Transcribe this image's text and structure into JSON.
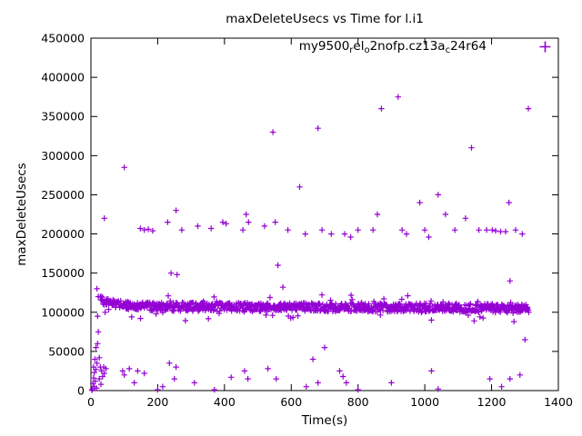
{
  "chart_data": {
    "type": "scatter",
    "title": "maxDeleteUsecs vs Time for l.i1",
    "xlabel": "Time(s)",
    "ylabel": "maxDeleteUsecs",
    "xlim": [
      0,
      1400
    ],
    "ylim": [
      0,
      450000
    ],
    "xticks": [
      0,
      200,
      400,
      600,
      800,
      1000,
      1200,
      1400
    ],
    "yticks": [
      0,
      50000,
      100000,
      150000,
      200000,
      250000,
      300000,
      350000,
      400000,
      450000
    ],
    "grid": false,
    "marker": "plus",
    "color": "#9400D3",
    "legend_position": "top-right-inside",
    "legend": {
      "plain_text": "my9500_rel_o2nofp.cz13a_c24r64",
      "segments": [
        {
          "text": "my9500",
          "sub": false
        },
        {
          "text": "r",
          "sub": true
        },
        {
          "text": "el",
          "sub": false
        },
        {
          "text": "o",
          "sub": true
        },
        {
          "text": "2nofp.cz13a",
          "sub": false
        },
        {
          "text": "c",
          "sub": true
        },
        {
          "text": "24r64",
          "sub": false
        }
      ]
    },
    "series": [
      {
        "name": "my9500_rel_o2nofp.cz13a_c24r64",
        "band": {
          "description": "dense steady-state band of per-interval samples",
          "x_start": 28,
          "x_end": 1312,
          "count": 950,
          "profile": [
            [
              28,
              120000
            ],
            [
              45,
              113000
            ],
            [
              70,
              110000
            ],
            [
              120,
              108000
            ],
            [
              250,
              107000
            ],
            [
              600,
              106500
            ],
            [
              1000,
              106000
            ],
            [
              1312,
              105000
            ]
          ],
          "jitter": 5500,
          "spike_prob": 0.08,
          "spike_extra": 15000,
          "seed": 42
        },
        "outliers": [
          [
            3,
            500
          ],
          [
            5,
            2000
          ],
          [
            6,
            9000
          ],
          [
            8,
            16000
          ],
          [
            8,
            30000
          ],
          [
            10,
            5000
          ],
          [
            10,
            23000
          ],
          [
            12,
            40000
          ],
          [
            13,
            12000
          ],
          [
            15,
            27000
          ],
          [
            15,
            55000
          ],
          [
            17,
            3000
          ],
          [
            18,
            35000
          ],
          [
            18,
            130000
          ],
          [
            20,
            60000
          ],
          [
            20,
            95000
          ],
          [
            22,
            120000
          ],
          [
            22,
            75000
          ],
          [
            25,
            15000
          ],
          [
            25,
            42000
          ],
          [
            28,
            30000
          ],
          [
            30,
            8000
          ],
          [
            32,
            25000
          ],
          [
            35,
            18000
          ],
          [
            38,
            30000
          ],
          [
            40,
            22000
          ],
          [
            40,
            220000
          ],
          [
            45,
            28000
          ],
          [
            95,
            25000
          ],
          [
            100,
            20000
          ],
          [
            100,
            285000
          ],
          [
            115,
            28000
          ],
          [
            130,
            10000
          ],
          [
            140,
            25000
          ],
          [
            148,
            207000
          ],
          [
            160,
            22000
          ],
          [
            160,
            205000
          ],
          [
            172,
            206000
          ],
          [
            185,
            204000
          ],
          [
            200,
            1000
          ],
          [
            215,
            5000
          ],
          [
            230,
            215000
          ],
          [
            235,
            35000
          ],
          [
            240,
            150000
          ],
          [
            250,
            15000
          ],
          [
            255,
            30000
          ],
          [
            255,
            230000
          ],
          [
            258,
            148000
          ],
          [
            272,
            205000
          ],
          [
            310,
            10000
          ],
          [
            320,
            210000
          ],
          [
            360,
            207000
          ],
          [
            370,
            1000
          ],
          [
            395,
            215000
          ],
          [
            405,
            213000
          ],
          [
            420,
            17000
          ],
          [
            455,
            205000
          ],
          [
            460,
            25000
          ],
          [
            465,
            225000
          ],
          [
            470,
            15000
          ],
          [
            472,
            215000
          ],
          [
            520,
            210000
          ],
          [
            530,
            28000
          ],
          [
            545,
            330000
          ],
          [
            552,
            215000
          ],
          [
            555,
            15000
          ],
          [
            560,
            160000
          ],
          [
            575,
            132000
          ],
          [
            590,
            205000
          ],
          [
            625,
            260000
          ],
          [
            642,
            200000
          ],
          [
            645,
            5000
          ],
          [
            665,
            40000
          ],
          [
            680,
            10000
          ],
          [
            680,
            335000
          ],
          [
            692,
            205000
          ],
          [
            700,
            55000
          ],
          [
            720,
            200000
          ],
          [
            745,
            25000
          ],
          [
            755,
            18000
          ],
          [
            760,
            200000
          ],
          [
            765,
            10000
          ],
          [
            778,
            196000
          ],
          [
            800,
            1000
          ],
          [
            800,
            205000
          ],
          [
            845,
            205000
          ],
          [
            858,
            225000
          ],
          [
            870,
            360000
          ],
          [
            900,
            10000
          ],
          [
            920,
            375000
          ],
          [
            932,
            205000
          ],
          [
            945,
            200000
          ],
          [
            985,
            240000
          ],
          [
            1000,
            205000
          ],
          [
            1012,
            196000
          ],
          [
            1020,
            25000
          ],
          [
            1040,
            2000
          ],
          [
            1040,
            250000
          ],
          [
            1062,
            225000
          ],
          [
            1090,
            205000
          ],
          [
            1122,
            220000
          ],
          [
            1140,
            310000
          ],
          [
            1162,
            205000
          ],
          [
            1185,
            205000
          ],
          [
            1195,
            15000
          ],
          [
            1202,
            205000
          ],
          [
            1212,
            204000
          ],
          [
            1227,
            203000
          ],
          [
            1230,
            5000
          ],
          [
            1242,
            203000
          ],
          [
            1252,
            240000
          ],
          [
            1255,
            15000
          ],
          [
            1255,
            140000
          ],
          [
            1272,
            205000
          ],
          [
            1285,
            20000
          ],
          [
            1292,
            200000
          ],
          [
            1300,
            65000
          ],
          [
            1310,
            360000
          ]
        ]
      }
    ]
  }
}
